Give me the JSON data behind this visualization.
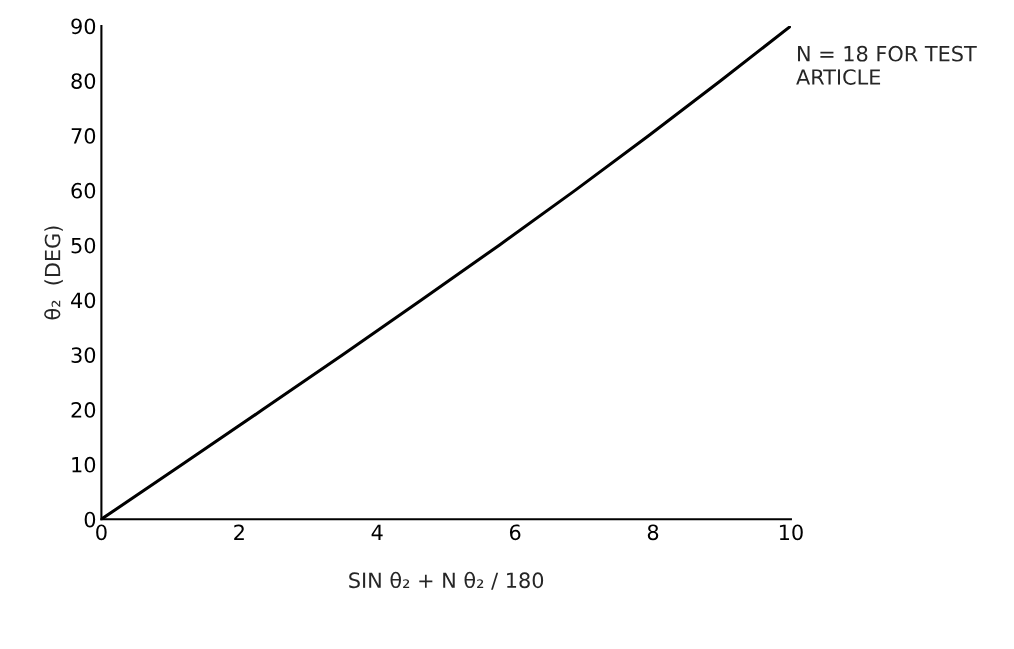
{
  "chart_data": {
    "type": "line",
    "xlabel": "SIN θ₂ + N θ₂ / 180",
    "ylabel": "θ₂  (DEG)",
    "annotations": [
      "N = 18 FOR TEST ARTICLE"
    ],
    "series": [
      {
        "color": "#000000",
        "x": [
          0,
          1.17,
          2.34,
          3.5,
          4.64,
          5.77,
          6.87,
          7.94,
          8.98,
          10
        ],
        "values": [
          0,
          10,
          20,
          30,
          40,
          50,
          60,
          70,
          80,
          90
        ]
      }
    ],
    "xlim": [
      0,
      10
    ],
    "ylim": [
      0,
      90
    ],
    "xticks": [
      0,
      2,
      4,
      6,
      8,
      10
    ],
    "yticks": [
      0,
      10,
      20,
      30,
      40,
      50,
      60,
      70,
      80,
      90
    ],
    "grid": false,
    "legend": false,
    "marker": "none",
    "line_style": "solid"
  }
}
